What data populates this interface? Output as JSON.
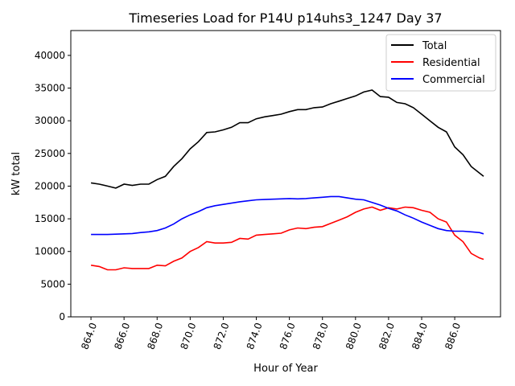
{
  "chart_data": {
    "type": "line",
    "title": "Timeseries Load for P14U p14uhs3_1247  Day 37",
    "xlabel": "Hour of Year",
    "ylabel": "kW total",
    "xlim": [
      862.78,
      888.77
    ],
    "ylim": [
      0,
      43800
    ],
    "xticks": [
      864,
      866,
      868,
      870,
      872,
      874,
      876,
      878,
      880,
      882,
      884,
      886
    ],
    "xtick_labels": [
      "864.0",
      "866.0",
      "868.0",
      "870.0",
      "872.0",
      "874.0",
      "876.0",
      "878.0",
      "880.0",
      "882.0",
      "884.0",
      "886.0"
    ],
    "yticks": [
      0,
      5000,
      10000,
      15000,
      20000,
      25000,
      30000,
      35000,
      40000
    ],
    "ytick_labels": [
      "0",
      "5000",
      "10000",
      "15000",
      "20000",
      "25000",
      "30000",
      "35000",
      "40000"
    ],
    "grid": false,
    "legend_position": "top-right",
    "x": [
      864,
      864.5,
      865,
      865.5,
      866,
      866.5,
      867,
      867.5,
      868,
      868.5,
      869,
      869.5,
      870,
      870.5,
      871,
      871.5,
      872,
      872.5,
      873,
      873.5,
      874,
      874.5,
      875,
      875.5,
      876,
      876.5,
      877,
      877.5,
      878,
      878.5,
      879,
      879.5,
      880,
      880.5,
      881,
      881.5,
      882,
      882.5,
      883,
      883.5,
      884,
      884.5,
      885,
      885.5,
      886,
      886.5,
      887,
      887.5,
      887.75
    ],
    "series": [
      {
        "name": "Total",
        "color": "#000000",
        "values": [
          20500,
          20300,
          20000,
          19700,
          20300,
          20100,
          20300,
          20300,
          21000,
          21500,
          23000,
          24200,
          25700,
          26800,
          28200,
          28300,
          28600,
          29000,
          29700,
          29700,
          30300,
          30600,
          30800,
          31000,
          31400,
          31700,
          31700,
          32000,
          32100,
          32600,
          33000,
          33400,
          33800,
          34400,
          34700,
          33700,
          33600,
          32800,
          32600,
          32000,
          31000,
          30000,
          29000,
          28300,
          26000,
          24800,
          23000,
          22000,
          21500
        ]
      },
      {
        "name": "Residential",
        "color": "#ff0000",
        "values": [
          7900,
          7700,
          7200,
          7200,
          7500,
          7400,
          7400,
          7400,
          7900,
          7800,
          8500,
          9000,
          10000,
          10600,
          11500,
          11300,
          11300,
          11400,
          12000,
          11900,
          12500,
          12600,
          12700,
          12800,
          13300,
          13600,
          13500,
          13700,
          13800,
          14300,
          14800,
          15300,
          16000,
          16500,
          16800,
          16300,
          16700,
          16500,
          16800,
          16700,
          16300,
          16000,
          15000,
          14500,
          12500,
          11500,
          9700,
          9000,
          8800
        ]
      },
      {
        "name": "Commercial",
        "color": "#0000ff",
        "values": [
          12600,
          12600,
          12600,
          12650,
          12700,
          12750,
          12900,
          13000,
          13200,
          13600,
          14200,
          15000,
          15600,
          16100,
          16700,
          17000,
          17200,
          17400,
          17600,
          17750,
          17900,
          17950,
          18000,
          18050,
          18100,
          18050,
          18100,
          18200,
          18300,
          18400,
          18400,
          18200,
          18000,
          17900,
          17500,
          17100,
          16600,
          16200,
          15600,
          15100,
          14500,
          14000,
          13500,
          13200,
          13100,
          13100,
          13000,
          12900,
          12700
        ]
      }
    ]
  }
}
